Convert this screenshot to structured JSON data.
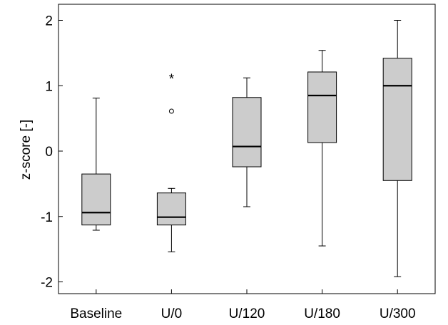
{
  "chart_data": {
    "type": "box",
    "title": "",
    "xlabel": "",
    "ylabel": "z-score [-]",
    "ylim": [
      -2.2,
      2.2
    ],
    "yticks": [
      2,
      1,
      0,
      -1,
      -2
    ],
    "ytick_labels": [
      "2",
      "1",
      "0",
      "-1",
      "-2"
    ],
    "grid": false,
    "categories": [
      "Baseline",
      "U/0",
      "U/120",
      "U/180",
      "U/300"
    ],
    "boxes": [
      {
        "category": "Baseline",
        "whisker_low": -1.21,
        "q1": -1.13,
        "median": -0.94,
        "q3": -0.35,
        "whisker_high": 0.81,
        "outliers": [],
        "extremes": []
      },
      {
        "category": "U/0",
        "whisker_low": -1.54,
        "q1": -1.13,
        "median": -1.01,
        "q3": -0.64,
        "whisker_high": -0.57,
        "outliers": [
          0.61
        ],
        "extremes": [
          1.11
        ]
      },
      {
        "category": "U/120",
        "whisker_low": -0.85,
        "q1": -0.24,
        "median": 0.07,
        "q3": 0.82,
        "whisker_high": 1.12,
        "outliers": [],
        "extremes": []
      },
      {
        "category": "U/180",
        "whisker_low": -1.45,
        "q1": 0.13,
        "median": 0.85,
        "q3": 1.21,
        "whisker_high": 1.54,
        "outliers": [],
        "extremes": []
      },
      {
        "category": "U/300",
        "whisker_low": -1.92,
        "q1": -0.45,
        "median": 1.0,
        "q3": 1.42,
        "whisker_high": 2.0,
        "outliers": [],
        "extremes": []
      }
    ],
    "colors": {
      "box_fill": "#cccccc",
      "line": "#000000"
    }
  }
}
